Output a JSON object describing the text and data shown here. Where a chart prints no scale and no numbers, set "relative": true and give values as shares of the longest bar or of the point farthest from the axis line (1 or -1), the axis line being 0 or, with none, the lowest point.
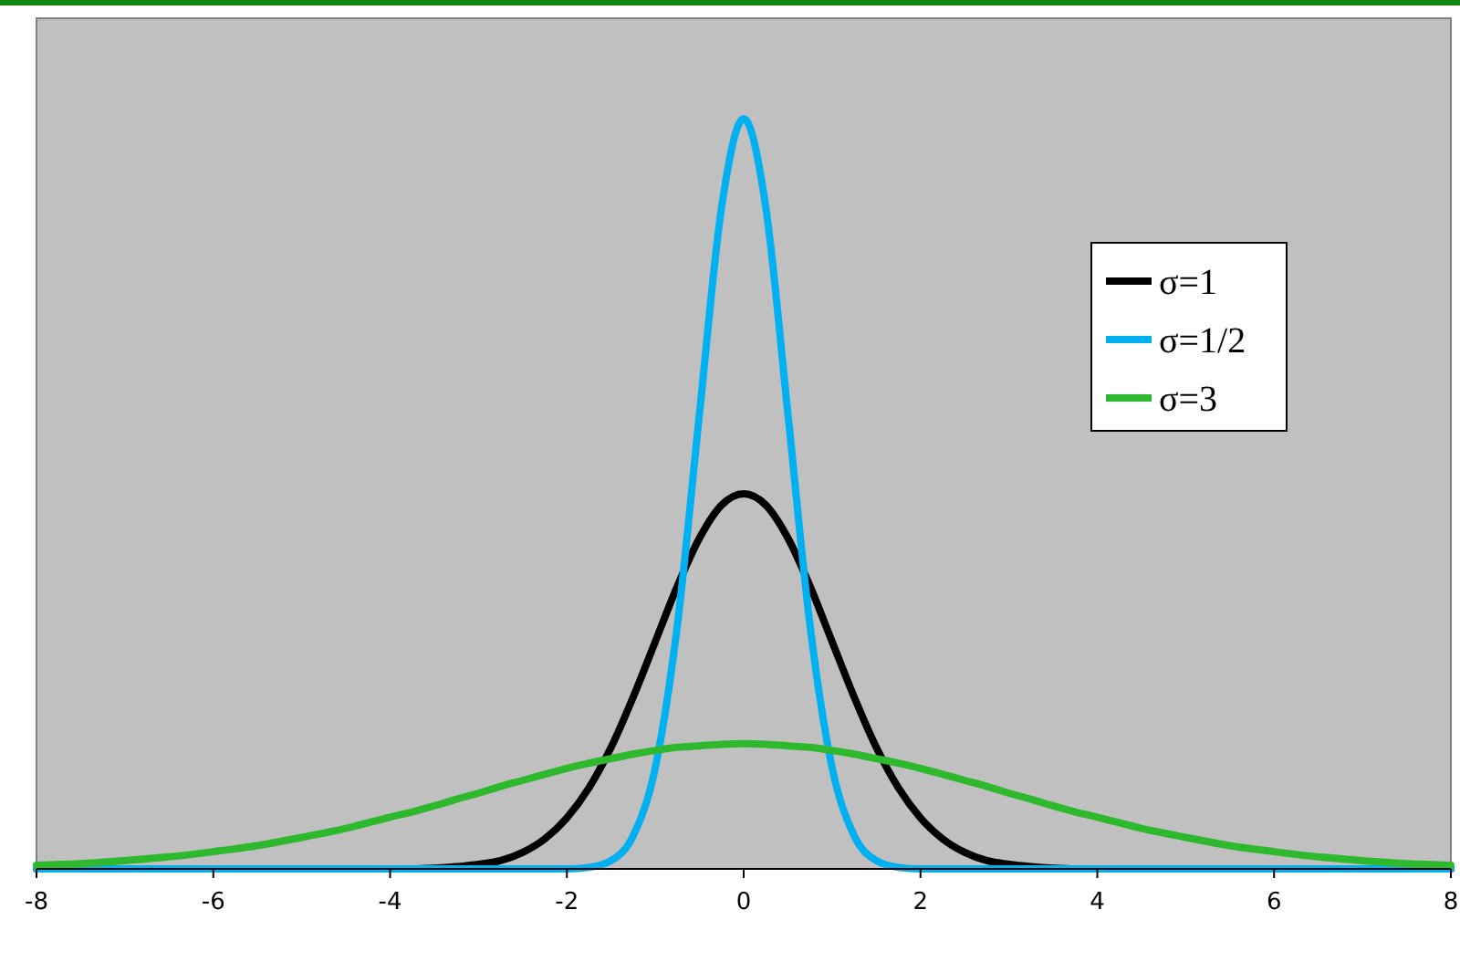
{
  "chart_data": {
    "type": "line",
    "relative": true,
    "xlim": [
      -8,
      8
    ],
    "xticks": [
      -8,
      -6,
      -4,
      -2,
      0,
      2,
      4,
      6,
      8
    ],
    "grid": false,
    "legend": "right",
    "marker": "none",
    "line_style": "solid",
    "x": [
      -8,
      -7.5,
      -7,
      -6.5,
      -6,
      -5.5,
      -5,
      -4.5,
      -4,
      -3.75,
      -3.5,
      -3.25,
      -3,
      -2.75,
      -2.5,
      -2.25,
      -2,
      -1.75,
      -1.5,
      -1.25,
      -1,
      -0.75,
      -0.5,
      -0.25,
      0,
      0.25,
      0.5,
      0.75,
      1,
      1.25,
      1.5,
      1.75,
      2,
      2.25,
      2.5,
      2.75,
      3,
      3.25,
      3.5,
      3.75,
      4,
      4.5,
      5,
      5.5,
      6,
      6.5,
      7,
      7.5,
      8
    ],
    "series": [
      {
        "name": "σ=1",
        "color": "#000000",
        "values": [
          0,
          0,
          0,
          0,
          0,
          0,
          0,
          0,
          0,
          0,
          0.001,
          0.003,
          0.006,
          0.011,
          0.022,
          0.04,
          0.068,
          0.108,
          0.162,
          0.229,
          0.303,
          0.377,
          0.441,
          0.485,
          0.5,
          0.485,
          0.441,
          0.377,
          0.303,
          0.229,
          0.162,
          0.108,
          0.068,
          0.04,
          0.022,
          0.011,
          0.006,
          0.003,
          0.001,
          0,
          0,
          0,
          0,
          0,
          0,
          0,
          0,
          0,
          0
        ]
      },
      {
        "name": "σ=1/2",
        "color": "#00b0f0",
        "values": [
          0,
          0,
          0,
          0,
          0,
          0,
          0,
          0,
          0,
          0,
          0,
          0,
          0,
          0,
          0,
          0,
          0,
          0.002,
          0.011,
          0.044,
          0.135,
          0.325,
          0.607,
          0.882,
          1,
          0.882,
          0.607,
          0.325,
          0.135,
          0.044,
          0.011,
          0.002,
          0,
          0,
          0,
          0,
          0,
          0,
          0,
          0,
          0,
          0,
          0,
          0,
          0,
          0,
          0,
          0,
          0
        ]
      },
      {
        "name": "σ=3",
        "color": "#2db82d",
        "values": [
          0.005,
          0.007,
          0.011,
          0.016,
          0.023,
          0.031,
          0.042,
          0.054,
          0.069,
          0.076,
          0.084,
          0.093,
          0.101,
          0.11,
          0.118,
          0.126,
          0.134,
          0.141,
          0.147,
          0.153,
          0.158,
          0.162,
          0.164,
          0.166,
          0.167,
          0.166,
          0.164,
          0.162,
          0.158,
          0.153,
          0.147,
          0.141,
          0.134,
          0.126,
          0.118,
          0.11,
          0.101,
          0.093,
          0.084,
          0.076,
          0.069,
          0.054,
          0.042,
          0.031,
          0.023,
          0.016,
          0.011,
          0.007,
          0.005
        ]
      }
    ]
  }
}
